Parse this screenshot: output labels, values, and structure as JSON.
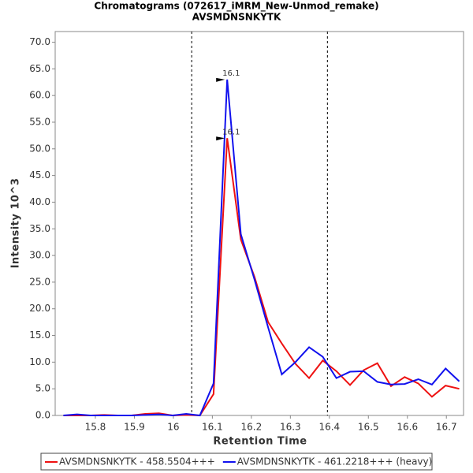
{
  "chart_data": {
    "type": "line",
    "title": "Chromatograms (072617_iMRM_New-Unmod_remake)",
    "subtitle": "AVSMDNSNKYTK",
    "x_label": "Retention Time",
    "y_label": "Intensity 10^3",
    "x": [
      15.718,
      15.753,
      15.788,
      15.823,
      15.858,
      15.893,
      15.928,
      15.963,
      15.998,
      16.033,
      16.068,
      16.103,
      16.138,
      16.173,
      16.208,
      16.243,
      16.278,
      16.313,
      16.348,
      16.383,
      16.418,
      16.453,
      16.488,
      16.523,
      16.558,
      16.593,
      16.628,
      16.663,
      16.698,
      16.733
    ],
    "series": [
      {
        "name": "AVSMDNSNKYTK - 458.5504+++",
        "color": "#ee1111",
        "values": [
          0,
          0,
          0,
          0.1,
          0,
          0,
          0.3,
          0.4,
          0,
          0.1,
          0,
          4,
          52,
          33,
          26,
          17.5,
          13.5,
          9.7,
          7,
          10.3,
          8.3,
          5.7,
          8.5,
          9.8,
          5.5,
          7.2,
          6,
          3.5,
          5.6,
          5.0
        ]
      },
      {
        "name": "AVSMDNSNKYTK - 461.2218+++ (heavy)",
        "color": "#1111ee",
        "values": [
          0,
          0.2,
          0,
          0,
          0,
          0,
          0.1,
          0.2,
          0,
          0.3,
          0,
          6,
          63,
          34,
          25.5,
          16.5,
          7.7,
          10,
          12.8,
          11,
          7,
          8.2,
          8.3,
          6.3,
          5.8,
          5.9,
          6.8,
          5.8,
          8.8,
          6.4
        ]
      }
    ],
    "annotations": [
      {
        "text": "16.1",
        "x": 16.138,
        "y": 52,
        "color": "#ee1111"
      },
      {
        "text": "16.1",
        "x": 16.138,
        "y": 63,
        "color": "#1111ee"
      }
    ],
    "vlines": [
      16.047,
      16.395
    ],
    "xlim": [
      15.697,
      16.744
    ],
    "xticks": [
      15.8,
      15.9,
      16.0,
      16.1,
      16.2,
      16.3,
      16.4,
      16.5,
      16.6,
      16.7
    ],
    "ylim": [
      0,
      72
    ],
    "yticks": [
      {
        "value": 0,
        "label": "0.0"
      },
      {
        "value": 5,
        "label": "5.0"
      },
      {
        "value": 10,
        "label": "10.0"
      },
      {
        "value": 15,
        "label": "15.0"
      },
      {
        "value": 20,
        "label": "20.0"
      },
      {
        "value": 25,
        "label": "25.0"
      },
      {
        "value": 30,
        "label": "30.0"
      },
      {
        "value": 35,
        "label": "35.0"
      },
      {
        "value": 40,
        "label": "40.0"
      },
      {
        "value": 45,
        "label": "45.0"
      },
      {
        "value": 50,
        "label": "50.0"
      },
      {
        "value": 55,
        "label": "55.0"
      },
      {
        "value": 60,
        "label": "60.0"
      },
      {
        "value": 65,
        "label": "65.0"
      },
      {
        "value": 70,
        "label": "70.0"
      }
    ],
    "legend": "bottom"
  }
}
